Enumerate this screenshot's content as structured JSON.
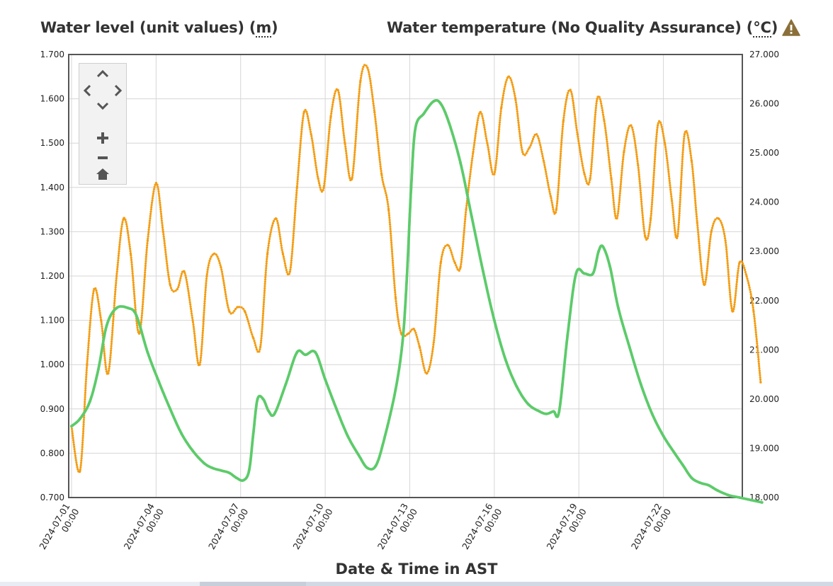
{
  "titles": {
    "left_text": "Water level (unit values) (",
    "left_unit": "m",
    "left_close": ")",
    "right_text": "Water temperature (No Quality Assurance) (",
    "right_unit": "°C",
    "right_close": ")"
  },
  "icons": {
    "warning": "warning-triangle-icon",
    "pan_up": "chevron-up-icon",
    "pan_left": "chevron-left-icon",
    "pan_right": "chevron-right-icon",
    "pan_down": "chevron-down-icon",
    "zoom_in": "plus-icon",
    "zoom_out": "minus-icon",
    "reset": "home-icon"
  },
  "colors": {
    "water_level": "#f39c12",
    "water_temperature": "#5ccb6a",
    "warning": "#8b6f3a"
  },
  "chart_data": {
    "type": "line",
    "xlabel": "Date & Time in AST",
    "x_ticks": [
      {
        "date": "2024-07-01",
        "time": "00:00",
        "day": 0
      },
      {
        "date": "2024-07-04",
        "time": "00:00",
        "day": 3
      },
      {
        "date": "2024-07-07",
        "time": "00:00",
        "day": 6
      },
      {
        "date": "2024-07-10",
        "time": "00:00",
        "day": 9
      },
      {
        "date": "2024-07-13",
        "time": "00:00",
        "day": 12
      },
      {
        "date": "2024-07-16",
        "time": "00:00",
        "day": 15
      },
      {
        "date": "2024-07-19",
        "time": "00:00",
        "day": 18
      },
      {
        "date": "2024-07-22",
        "time": "00:00",
        "day": 21
      }
    ],
    "xlim_days": [
      -0.1,
      23.8
    ],
    "y_left": {
      "label": "Water level (unit values) (m)",
      "ylim": [
        0.7,
        1.7
      ],
      "ticks": [
        "0.700",
        "0.800",
        "0.900",
        "1.000",
        "1.100",
        "1.200",
        "1.300",
        "1.400",
        "1.500",
        "1.600",
        "1.700"
      ]
    },
    "y_right": {
      "label": "Water temperature (No Quality Assurance) (°C)",
      "ylim": [
        18.0,
        27.0
      ],
      "ticks": [
        "18.000",
        "19.000",
        "20.000",
        "21.000",
        "22.000",
        "23.000",
        "24.000",
        "25.000",
        "26.000",
        "27.000"
      ]
    },
    "grid": true,
    "series": [
      {
        "name": "Water level (unit values)",
        "axis": "left",
        "points": [
          [
            0.0,
            0.86
          ],
          [
            0.3,
            0.76
          ],
          [
            0.55,
            1.0
          ],
          [
            0.8,
            1.17
          ],
          [
            1.05,
            1.1
          ],
          [
            1.3,
            0.98
          ],
          [
            1.6,
            1.2
          ],
          [
            1.85,
            1.33
          ],
          [
            2.1,
            1.25
          ],
          [
            2.4,
            1.07
          ],
          [
            2.7,
            1.28
          ],
          [
            3.0,
            1.41
          ],
          [
            3.25,
            1.3
          ],
          [
            3.5,
            1.18
          ],
          [
            3.75,
            1.17
          ],
          [
            4.0,
            1.21
          ],
          [
            4.3,
            1.1
          ],
          [
            4.55,
            1.0
          ],
          [
            4.8,
            1.2
          ],
          [
            5.05,
            1.25
          ],
          [
            5.3,
            1.22
          ],
          [
            5.6,
            1.12
          ],
          [
            5.9,
            1.13
          ],
          [
            6.15,
            1.12
          ],
          [
            6.45,
            1.06
          ],
          [
            6.7,
            1.04
          ],
          [
            6.95,
            1.25
          ],
          [
            7.25,
            1.33
          ],
          [
            7.5,
            1.25
          ],
          [
            7.75,
            1.21
          ],
          [
            8.0,
            1.4
          ],
          [
            8.25,
            1.57
          ],
          [
            8.5,
            1.52
          ],
          [
            8.75,
            1.42
          ],
          [
            8.95,
            1.4
          ],
          [
            9.2,
            1.56
          ],
          [
            9.45,
            1.62
          ],
          [
            9.7,
            1.5
          ],
          [
            9.95,
            1.42
          ],
          [
            10.25,
            1.64
          ],
          [
            10.5,
            1.67
          ],
          [
            10.75,
            1.57
          ],
          [
            11.0,
            1.43
          ],
          [
            11.25,
            1.35
          ],
          [
            11.5,
            1.15
          ],
          [
            11.7,
            1.07
          ],
          [
            11.95,
            1.07
          ],
          [
            12.15,
            1.08
          ],
          [
            12.35,
            1.04
          ],
          [
            12.6,
            0.98
          ],
          [
            12.85,
            1.05
          ],
          [
            13.1,
            1.23
          ],
          [
            13.35,
            1.27
          ],
          [
            13.6,
            1.23
          ],
          [
            13.8,
            1.22
          ],
          [
            14.0,
            1.35
          ],
          [
            14.25,
            1.48
          ],
          [
            14.5,
            1.57
          ],
          [
            14.75,
            1.5
          ],
          [
            15.0,
            1.43
          ],
          [
            15.25,
            1.58
          ],
          [
            15.5,
            1.65
          ],
          [
            15.75,
            1.6
          ],
          [
            16.0,
            1.48
          ],
          [
            16.25,
            1.49
          ],
          [
            16.5,
            1.52
          ],
          [
            16.75,
            1.46
          ],
          [
            17.0,
            1.38
          ],
          [
            17.2,
            1.35
          ],
          [
            17.45,
            1.55
          ],
          [
            17.7,
            1.62
          ],
          [
            17.95,
            1.52
          ],
          [
            18.2,
            1.43
          ],
          [
            18.4,
            1.42
          ],
          [
            18.65,
            1.6
          ],
          [
            18.9,
            1.55
          ],
          [
            19.15,
            1.42
          ],
          [
            19.35,
            1.33
          ],
          [
            19.6,
            1.48
          ],
          [
            19.85,
            1.54
          ],
          [
            20.1,
            1.45
          ],
          [
            20.35,
            1.29
          ],
          [
            20.55,
            1.33
          ],
          [
            20.8,
            1.54
          ],
          [
            21.05,
            1.5
          ],
          [
            21.3,
            1.37
          ],
          [
            21.5,
            1.29
          ],
          [
            21.75,
            1.52
          ],
          [
            22.0,
            1.46
          ],
          [
            22.2,
            1.32
          ],
          [
            22.45,
            1.18
          ],
          [
            22.7,
            1.3
          ],
          [
            22.95,
            1.33
          ],
          [
            23.2,
            1.28
          ],
          [
            23.45,
            1.12
          ],
          [
            23.7,
            1.23
          ],
          [
            23.95,
            1.2
          ],
          [
            24.2,
            1.12
          ],
          [
            24.45,
            0.96
          ]
        ]
      },
      {
        "name": "Water temperature (No Quality Assurance)",
        "axis": "right",
        "points": [
          [
            0.0,
            19.45
          ],
          [
            0.3,
            19.6
          ],
          [
            0.65,
            19.95
          ],
          [
            0.95,
            20.6
          ],
          [
            1.25,
            21.5
          ],
          [
            1.6,
            21.85
          ],
          [
            2.0,
            21.85
          ],
          [
            2.3,
            21.7
          ],
          [
            2.7,
            20.95
          ],
          [
            3.1,
            20.35
          ],
          [
            3.5,
            19.8
          ],
          [
            3.9,
            19.3
          ],
          [
            4.3,
            18.95
          ],
          [
            4.7,
            18.7
          ],
          [
            5.0,
            18.6
          ],
          [
            5.3,
            18.55
          ],
          [
            5.6,
            18.5
          ],
          [
            5.85,
            18.4
          ],
          [
            6.1,
            18.35
          ],
          [
            6.3,
            18.55
          ],
          [
            6.45,
            19.3
          ],
          [
            6.6,
            20.0
          ],
          [
            6.8,
            20.0
          ],
          [
            7.0,
            19.75
          ],
          [
            7.2,
            19.7
          ],
          [
            7.6,
            20.3
          ],
          [
            8.0,
            20.95
          ],
          [
            8.3,
            20.9
          ],
          [
            8.65,
            20.95
          ],
          [
            9.0,
            20.4
          ],
          [
            9.4,
            19.8
          ],
          [
            9.8,
            19.25
          ],
          [
            10.2,
            18.85
          ],
          [
            10.5,
            18.6
          ],
          [
            10.8,
            18.65
          ],
          [
            11.1,
            19.2
          ],
          [
            11.5,
            20.2
          ],
          [
            11.75,
            21.2
          ],
          [
            11.9,
            22.5
          ],
          [
            12.05,
            24.3
          ],
          [
            12.2,
            25.5
          ],
          [
            12.5,
            25.8
          ],
          [
            12.85,
            26.05
          ],
          [
            13.1,
            26.0
          ],
          [
            13.4,
            25.6
          ],
          [
            13.8,
            24.8
          ],
          [
            14.2,
            23.7
          ],
          [
            14.6,
            22.6
          ],
          [
            15.0,
            21.6
          ],
          [
            15.4,
            20.8
          ],
          [
            15.8,
            20.25
          ],
          [
            16.2,
            19.9
          ],
          [
            16.6,
            19.75
          ],
          [
            16.85,
            19.7
          ],
          [
            17.1,
            19.75
          ],
          [
            17.3,
            19.75
          ],
          [
            17.6,
            21.3
          ],
          [
            17.9,
            22.55
          ],
          [
            18.2,
            22.55
          ],
          [
            18.5,
            22.55
          ],
          [
            18.7,
            23.0
          ],
          [
            18.85,
            23.1
          ],
          [
            19.1,
            22.7
          ],
          [
            19.4,
            21.85
          ],
          [
            19.8,
            21.05
          ],
          [
            20.2,
            20.3
          ],
          [
            20.6,
            19.7
          ],
          [
            21.0,
            19.25
          ],
          [
            21.4,
            18.9
          ],
          [
            21.7,
            18.65
          ],
          [
            22.0,
            18.4
          ],
          [
            22.3,
            18.3
          ],
          [
            22.6,
            18.25
          ],
          [
            22.9,
            18.15
          ],
          [
            23.3,
            18.05
          ],
          [
            23.7,
            18.0
          ],
          [
            24.1,
            17.95
          ],
          [
            24.5,
            17.9
          ]
        ]
      }
    ]
  }
}
